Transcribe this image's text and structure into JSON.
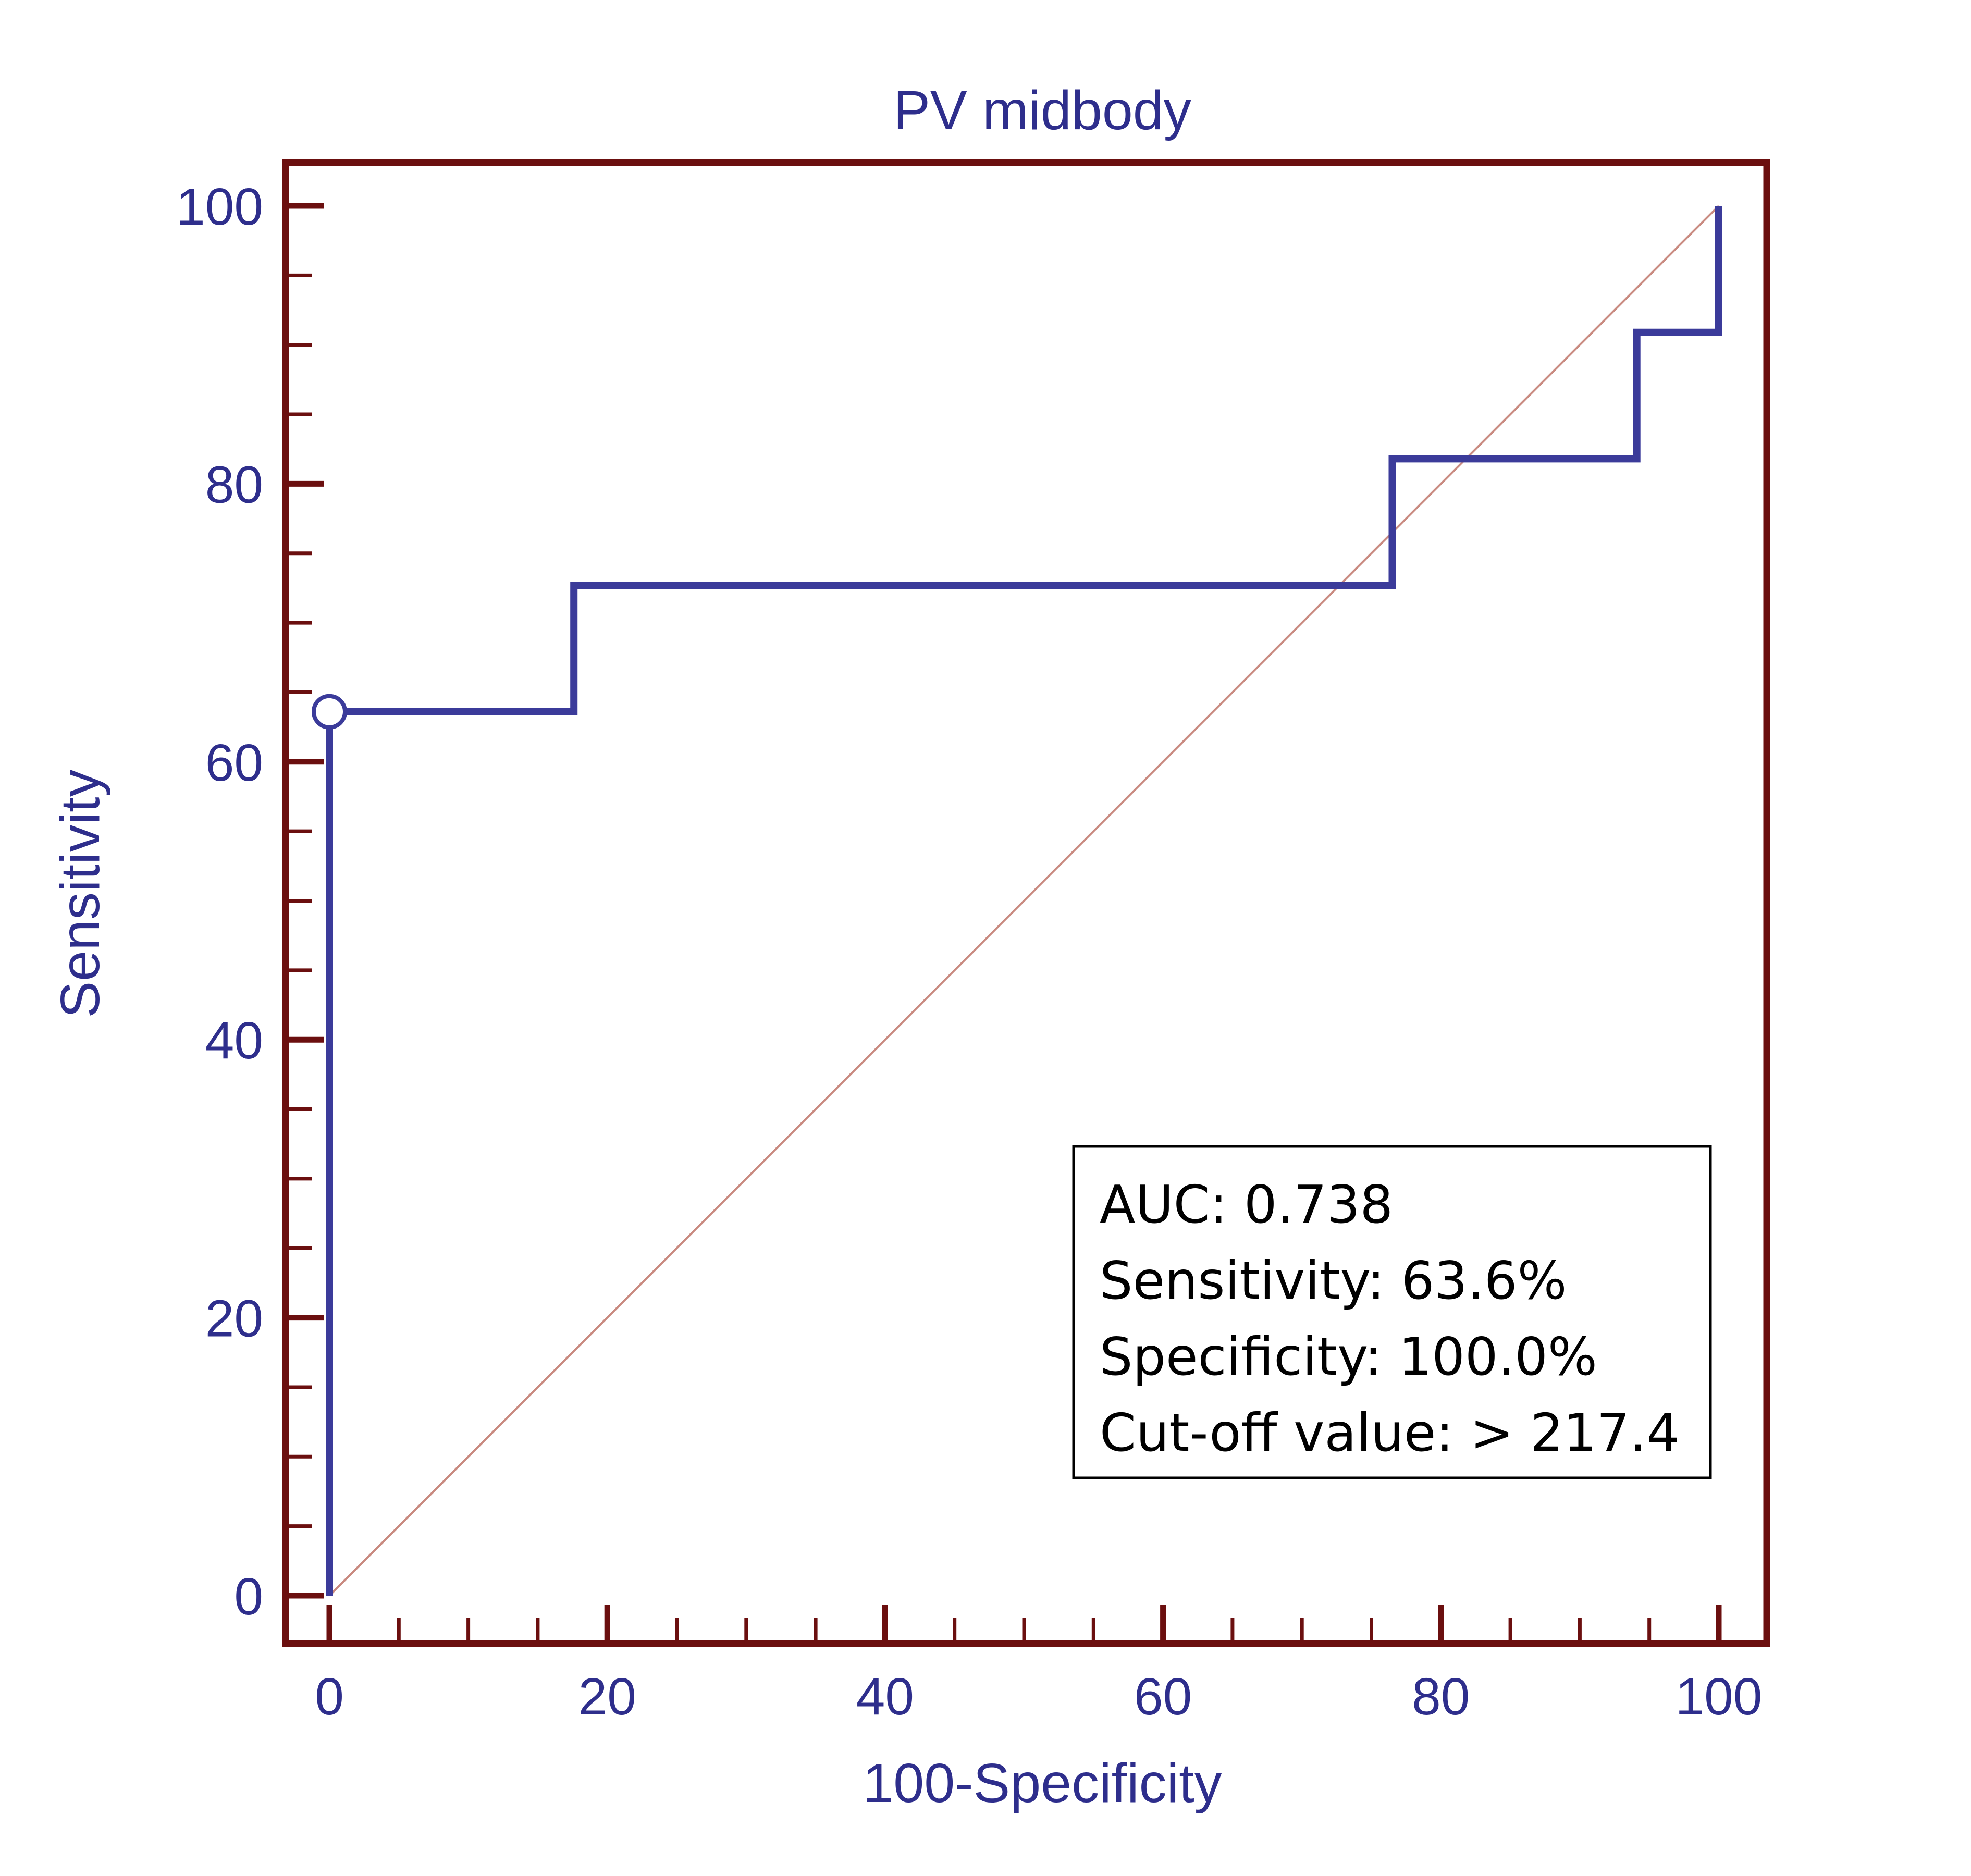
{
  "colors": {
    "frame": "#6b0f0f",
    "curve": "#3b3b9a",
    "diagonal": "#c98a80",
    "text": "#2e2e8c",
    "legend_border": "#000000",
    "legend_text": "#000000",
    "background": "#ffffff"
  },
  "chart_data": {
    "type": "line",
    "title": "PV midbody",
    "xlabel": "100-Specificity",
    "ylabel": "Sensitivity",
    "xlim": [
      0,
      100
    ],
    "ylim": [
      0,
      100
    ],
    "x_ticks": [
      0,
      20,
      40,
      60,
      80,
      100
    ],
    "y_ticks": [
      0,
      20,
      40,
      60,
      80,
      100
    ],
    "grid": false,
    "series": [
      {
        "kind": "roc",
        "points": [
          [
            0,
            0
          ],
          [
            0,
            63.6
          ],
          [
            17.6,
            63.6
          ],
          [
            17.6,
            72.7
          ],
          [
            76.5,
            72.7
          ],
          [
            76.5,
            81.8
          ],
          [
            94.1,
            81.8
          ],
          [
            94.1,
            90.9
          ],
          [
            100,
            90.9
          ],
          [
            100,
            100
          ]
        ]
      },
      {
        "kind": "reference-diagonal",
        "points": [
          [
            0,
            0
          ],
          [
            100,
            100
          ]
        ]
      }
    ],
    "marker": {
      "x": 0,
      "y": 63.6
    },
    "annotation": {
      "position": "bottom-right",
      "lines": [
        "AUC: 0.738",
        "Sensitivity: 63.6%",
        "Specificity: 100.0%",
        "Cut-off value: > 217.4"
      ]
    }
  }
}
